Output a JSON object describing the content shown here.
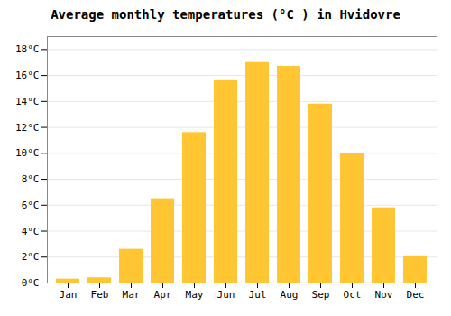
{
  "chart_data": {
    "type": "bar",
    "title": "Average monthly temperatures (°C ) in Hvidovre",
    "categories": [
      "Jan",
      "Feb",
      "Mar",
      "Apr",
      "May",
      "Jun",
      "Jul",
      "Aug",
      "Sep",
      "Oct",
      "Nov",
      "Dec"
    ],
    "values": [
      0.3,
      0.4,
      2.6,
      6.5,
      11.6,
      15.6,
      17.0,
      16.7,
      13.8,
      10.0,
      5.8,
      2.1
    ],
    "color": "#FFC533",
    "ylim": [
      0,
      19
    ],
    "yticks": [
      {
        "value": 0,
        "label": "0°C"
      },
      {
        "value": 2,
        "label": "2°C"
      },
      {
        "value": 4,
        "label": "4°C"
      },
      {
        "value": 6,
        "label": "6°C"
      },
      {
        "value": 8,
        "label": "8°C"
      },
      {
        "value": 10,
        "label": "10°C"
      },
      {
        "value": 12,
        "label": "12°C"
      },
      {
        "value": 14,
        "label": "14°C"
      },
      {
        "value": 16,
        "label": "16°C"
      },
      {
        "value": 18,
        "label": "18°C"
      }
    ],
    "grid": true
  }
}
